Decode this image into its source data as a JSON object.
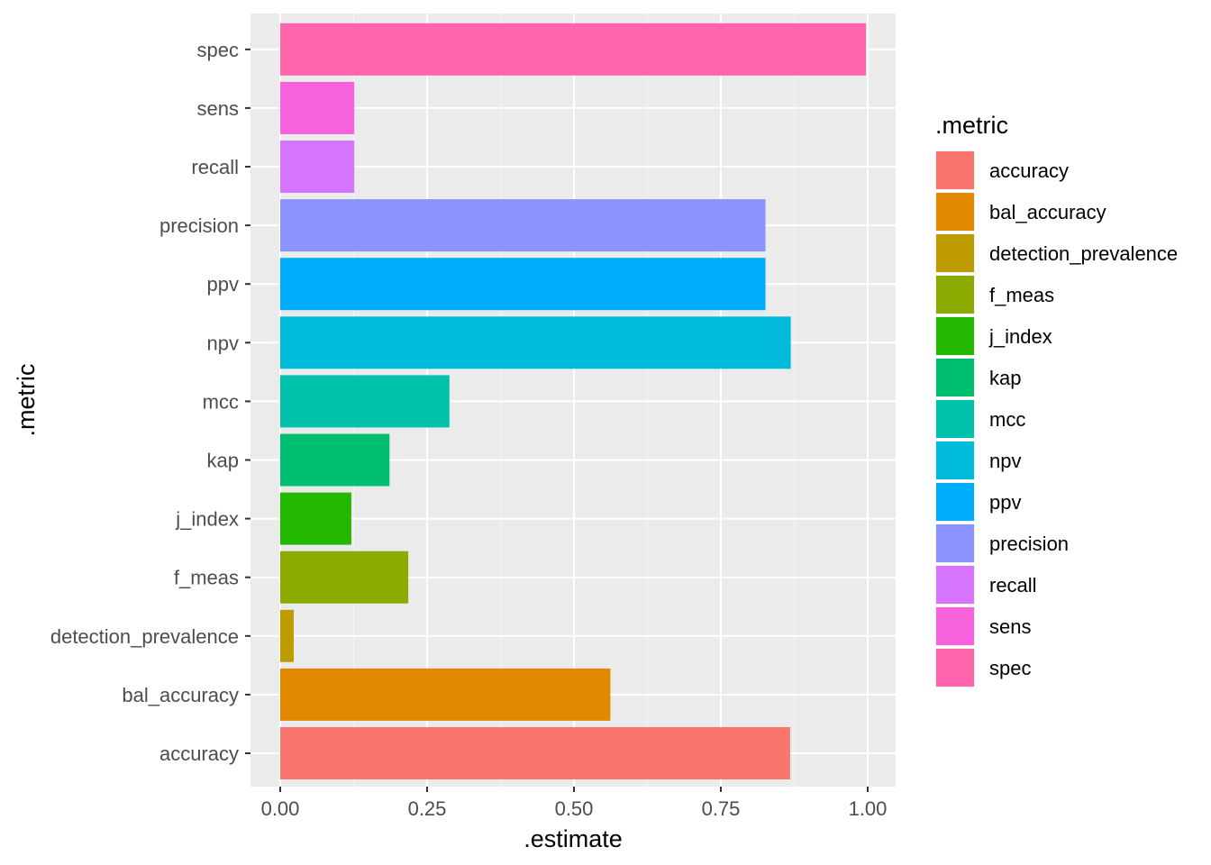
{
  "chart_data": {
    "type": "bar",
    "orientation": "horizontal",
    "xlabel": ".estimate",
    "ylabel": ".metric",
    "xlim": [
      -0.05,
      1.05
    ],
    "xticks": [
      0.0,
      0.25,
      0.5,
      0.75,
      1.0
    ],
    "xtick_labels": [
      "0.00",
      "0.25",
      "0.50",
      "0.75",
      "1.00"
    ],
    "grid": true,
    "legend_title": ".metric",
    "legend_position": "right",
    "categories": [
      "accuracy",
      "bal_accuracy",
      "detection_prevalence",
      "f_meas",
      "j_index",
      "kap",
      "mcc",
      "npv",
      "ppv",
      "precision",
      "recall",
      "sens",
      "spec"
    ],
    "values": [
      0.868,
      0.562,
      0.023,
      0.218,
      0.121,
      0.186,
      0.288,
      0.869,
      0.826,
      0.826,
      0.126,
      0.126,
      0.997
    ],
    "colors": [
      "#F8766D",
      "#E18A00",
      "#BE9C00",
      "#8CAB00",
      "#24B700",
      "#00BE70",
      "#00C1AB",
      "#00BBDA",
      "#00ACFC",
      "#8B93FF",
      "#D575FE",
      "#F962DD",
      "#FF65AC"
    ]
  }
}
